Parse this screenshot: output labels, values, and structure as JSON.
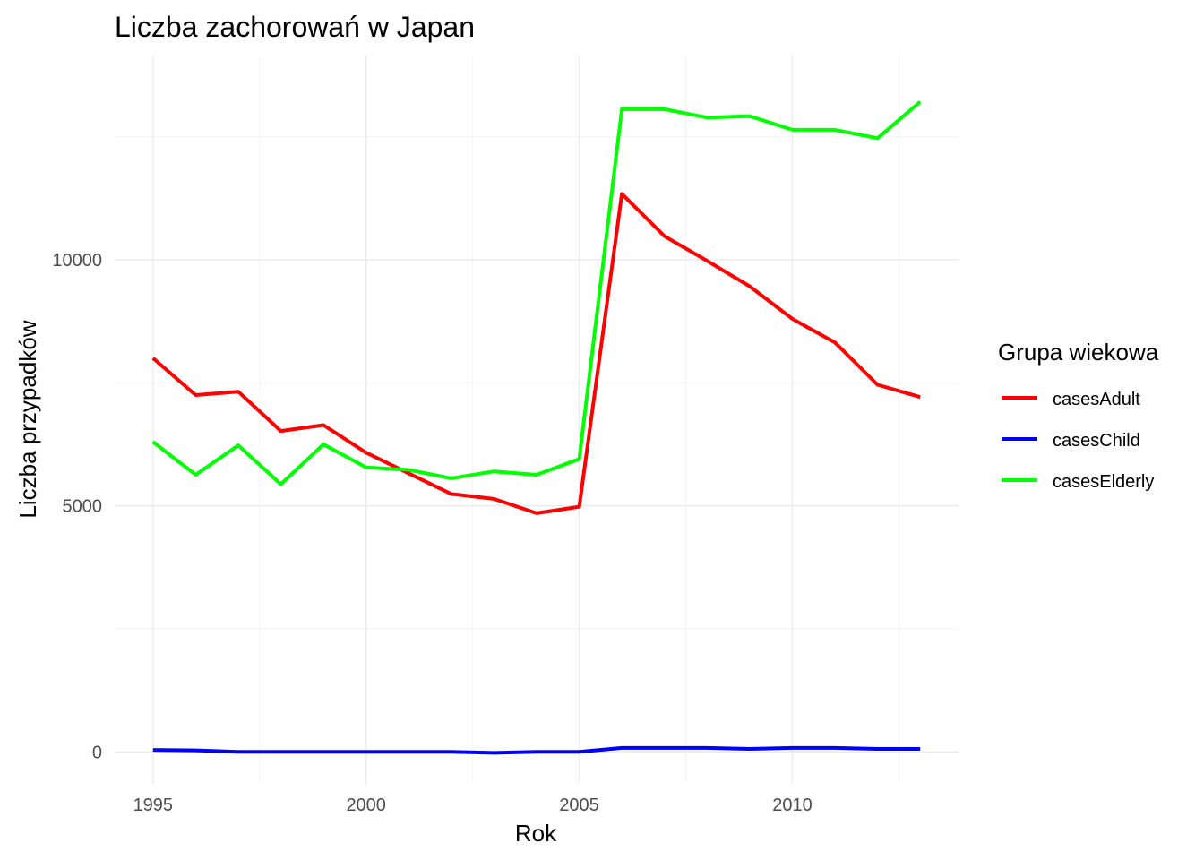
{
  "chart_data": {
    "type": "line",
    "title": "Liczba zachorowań w Japan",
    "xlabel": "Rok",
    "ylabel": "Liczba przypadków",
    "x": [
      1995,
      1996,
      1997,
      1998,
      1999,
      2000,
      2001,
      2002,
      2003,
      2004,
      2005,
      2006,
      2007,
      2008,
      2009,
      2010,
      2011,
      2012,
      2013
    ],
    "x_ticks": [
      "1995",
      "2000",
      "2005",
      "2010"
    ],
    "y_ticks": [
      "0",
      "5000",
      "10000"
    ],
    "xlim": [
      1994.1,
      2013.9
    ],
    "ylim": [
      -650,
      14150
    ],
    "grid": true,
    "legend": {
      "title": "Grupa wiekowa",
      "position": "right"
    },
    "series": [
      {
        "name": "casesAdult",
        "color": "#ff0000",
        "values": [
          8000,
          7250,
          7320,
          6520,
          6640,
          6080,
          5660,
          5240,
          5140,
          4850,
          4980,
          11340,
          10480,
          9980,
          9460,
          8800,
          8320,
          7460,
          7210
        ]
      },
      {
        "name": "casesChild",
        "color": "#0000ff",
        "values": [
          40,
          30,
          0,
          0,
          0,
          0,
          0,
          0,
          -20,
          0,
          0,
          80,
          80,
          80,
          60,
          80,
          80,
          60,
          60
        ]
      },
      {
        "name": "casesElderly",
        "color": "#00ff00",
        "values": [
          6300,
          5630,
          6230,
          5440,
          6250,
          5780,
          5730,
          5560,
          5700,
          5630,
          5950,
          13060,
          13060,
          12890,
          12920,
          12640,
          12640,
          12470,
          13210
        ]
      }
    ]
  }
}
